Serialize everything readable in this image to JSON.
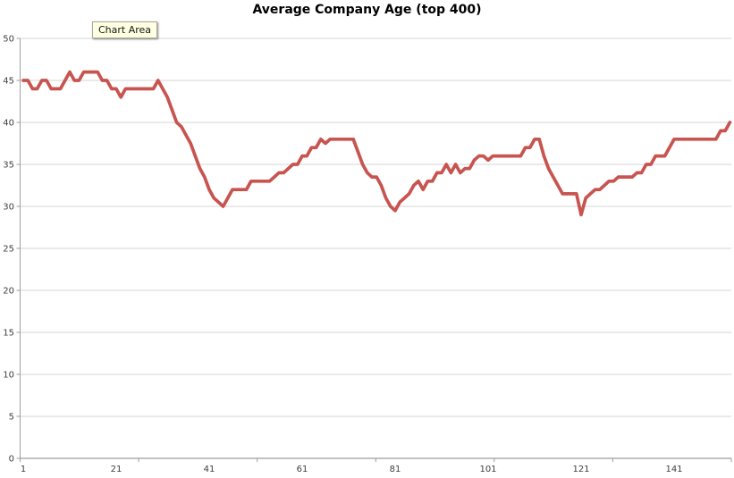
{
  "tooltip": {
    "label": "Chart Area"
  },
  "colors": {
    "series": "#C85450",
    "gridline": "#D4D4D4",
    "axis": "#9E9E9E",
    "tick_label": "#404040",
    "title": "#000000",
    "tooltip_bg": "#FFFFE1",
    "tooltip_border": "#ACA899"
  },
  "chart_data": {
    "type": "line",
    "title": "Average Company Age (top 400)",
    "xlabel": "",
    "ylabel": "",
    "legend": "none",
    "grid": "horizontal",
    "ylim": [
      0,
      50
    ],
    "y_tick_step": 5,
    "y_tick_values": [
      0,
      5,
      10,
      15,
      20,
      25,
      30,
      35,
      40,
      45,
      50
    ],
    "x_tick_values": [
      1,
      21,
      41,
      61,
      81,
      101,
      121,
      141
    ],
    "x_start": 1,
    "point_count": 153,
    "values": [
      45,
      45,
      44,
      44,
      45,
      45,
      44,
      44,
      44,
      45,
      46,
      45,
      45,
      46,
      46,
      46,
      46,
      45,
      45,
      44,
      44,
      43,
      44,
      44,
      44,
      44,
      44,
      44,
      44,
      45,
      44,
      43,
      41.5,
      40,
      39.5,
      38.5,
      37.5,
      36,
      34.5,
      33.5,
      32,
      31,
      30.5,
      30,
      31,
      32,
      32,
      32,
      32,
      33,
      33,
      33,
      33,
      33,
      33.5,
      34,
      34,
      34.5,
      35,
      35,
      36,
      36,
      37,
      37,
      38,
      37.5,
      38,
      38,
      38,
      38,
      38,
      38,
      36.5,
      35,
      34,
      33.5,
      33.5,
      32.5,
      31,
      30,
      29.5,
      30.5,
      31,
      31.5,
      32.5,
      33,
      32,
      33,
      33,
      34,
      34,
      35,
      34,
      35,
      34,
      34.5,
      34.5,
      35.5,
      36,
      36,
      35.5,
      36,
      36,
      36,
      36,
      36,
      36,
      36,
      37,
      37,
      38,
      38,
      36,
      34.5,
      33.5,
      32.5,
      31.5,
      31.5,
      31.5,
      31.5,
      29,
      31,
      31.5,
      32,
      32,
      32.5,
      33,
      33,
      33.5,
      33.5,
      33.5,
      33.5,
      34,
      34,
      35,
      35,
      36,
      36,
      36,
      37,
      38,
      38,
      38,
      38,
      38,
      38,
      38,
      38,
      38,
      38,
      39,
      39,
      40
    ]
  }
}
